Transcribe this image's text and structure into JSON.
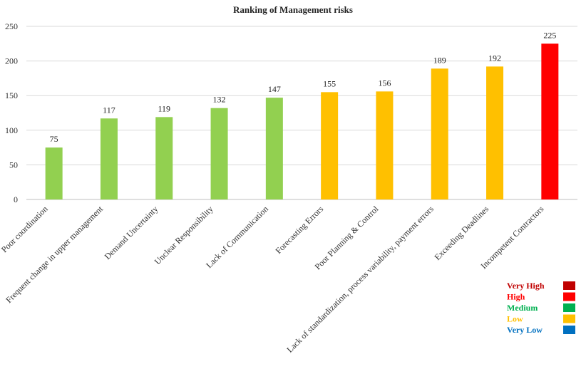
{
  "chart_data": {
    "type": "bar",
    "title": "Ranking of Management risks",
    "xlabel": "",
    "ylabel": "",
    "ylim": [
      0,
      250
    ],
    "yticks": [
      0,
      50,
      100,
      150,
      200,
      250
    ],
    "grid": true,
    "categories": [
      "Poor coordination",
      "Frequent change in upper management",
      "Demand Uncertainty",
      "Unclear Responsibility",
      "Lack of Communication",
      "Forecasting Errors",
      "Poor Planning & Control",
      "Lack of standardization, process variability, payment errors",
      "Exceeding Deadlines",
      "Incompetent Contractors"
    ],
    "values": [
      75,
      117,
      119,
      132,
      147,
      155,
      156,
      189,
      192,
      225
    ],
    "bar_levels": [
      "Medium",
      "Medium",
      "Medium",
      "Medium",
      "Medium",
      "Low",
      "Low",
      "Low",
      "Low",
      "High"
    ],
    "legend": {
      "position": "bottom-right",
      "entries": [
        {
          "label": "Very High",
          "color": "#C00000"
        },
        {
          "label": "High",
          "color": "#FF0000"
        },
        {
          "label": "Medium",
          "color": "#00B050"
        },
        {
          "label": "Low",
          "color": "#FFC000"
        },
        {
          "label": "Very Low",
          "color": "#0070C0"
        }
      ]
    },
    "bar_colors": {
      "Medium": "#92D050",
      "Low": "#FFC000",
      "High": "#FF0000"
    }
  }
}
